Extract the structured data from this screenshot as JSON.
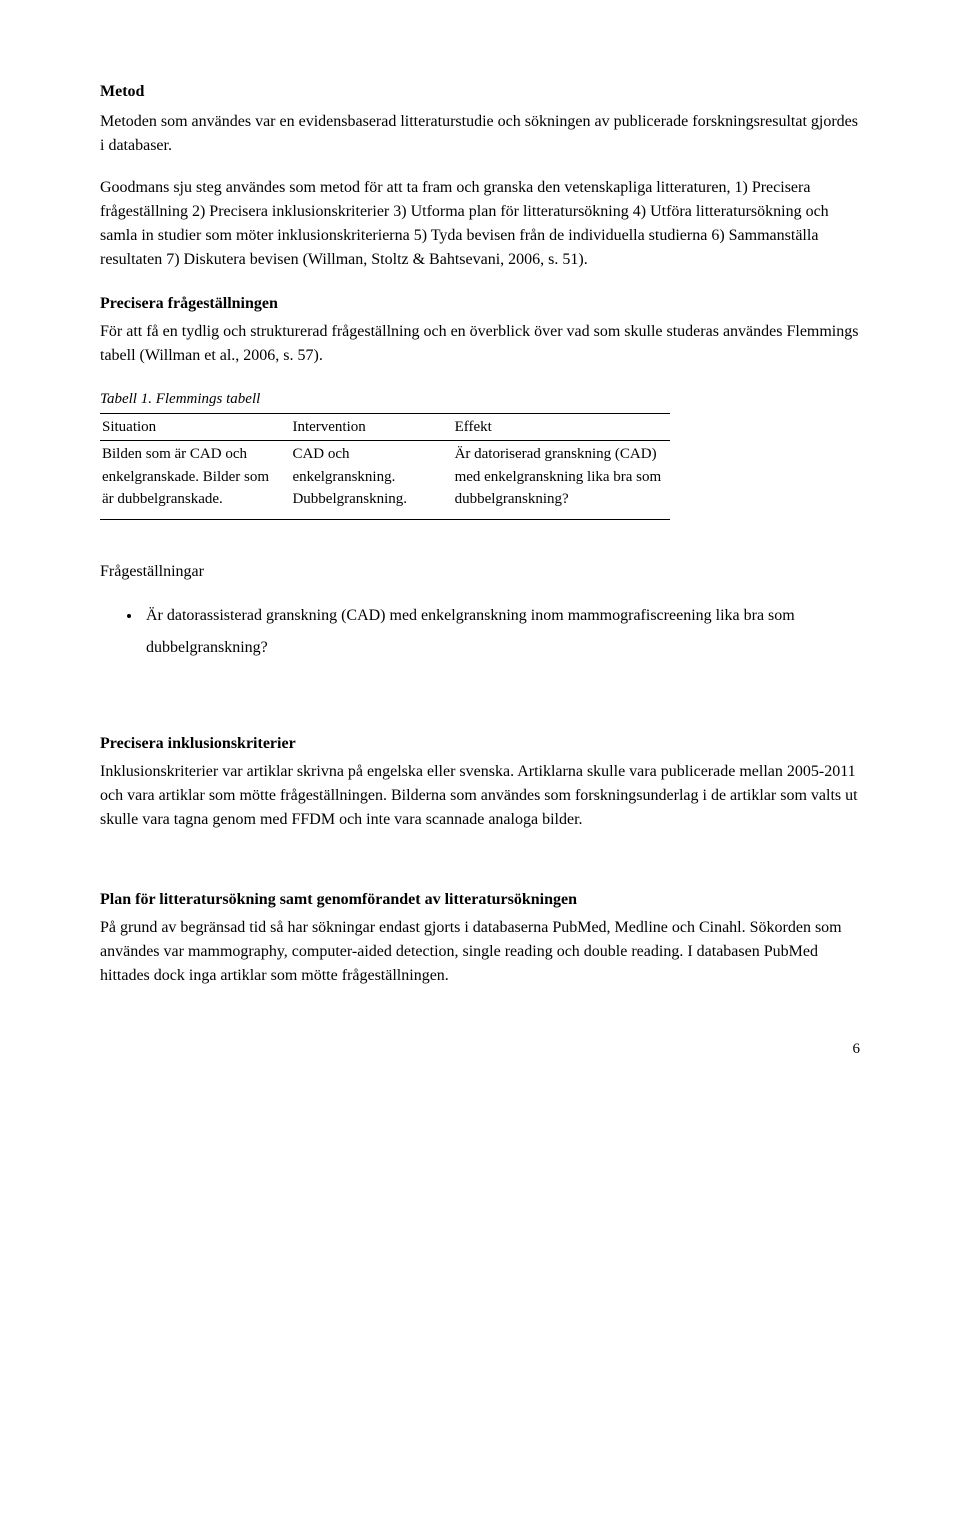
{
  "h_metod": "Metod",
  "p_metod_intro": "Metoden som användes var en evidensbaserad litteraturstudie och sökningen av publicerade forskningsresultat gjordes i databaser.",
  "p_metod_goodmans": "Goodmans sju steg användes som metod för att ta fram och granska den vetenskapliga litteraturen, 1) Precisera frågeställning 2) Precisera inklusionskriterier 3) Utforma plan för litteratursökning 4) Utföra litteratursökning och samla in studier som möter inklusionskriterierna 5) Tyda bevisen från de individuella studierna 6) Sammanställa resultaten 7) Diskutera bevisen (Willman, Stoltz & Bahtsevani, 2006, s. 51).",
  "h_precisera_fraga": "Precisera frågeställningen",
  "p_precisera_fraga": "För att få en tydlig och strukturerad frågeställning och en överblick över vad som skulle studeras användes Flemmings tabell (Willman et al., 2006, s. 57).",
  "table_caption": "Tabell 1. Flemmings tabell",
  "table": {
    "headers": [
      "Situation",
      "Intervention",
      "Effekt"
    ],
    "row": {
      "situation": "Bilden som är CAD och enkelgranskade. Bilder som är dubbelgranskade.",
      "intervention": "CAD och enkelgranskning. Dubbelgranskning.",
      "effekt": "Är datoriserad granskning (CAD) med enkelgranskning lika bra som dubbelgranskning?"
    }
  },
  "q_label": "Frågeställningar",
  "bullet_q": "Är datorassisterad granskning (CAD) med enkelgranskning inom mammografiscreening lika bra som dubbelgranskning?",
  "h_inklusion": "Precisera inklusionskriterier",
  "p_inklusion": "Inklusionskriterier var artiklar skrivna på engelska eller svenska. Artiklarna skulle vara publicerade mellan 2005-2011 och vara artiklar som mötte frågeställningen. Bilderna som användes som forskningsunderlag i de artiklar som valts ut skulle vara tagna genom med FFDM och inte vara scannade analoga bilder.",
  "h_plan": "Plan för litteratursökning samt genomförandet av litteratursökningen",
  "p_plan": "På grund av begränsad tid så har sökningar endast gjorts i databaserna PubMed, Medline och Cinahl. Sökorden som användes var mammography, computer-aided detection, single reading och double reading. I databasen PubMed hittades dock inga artiklar som mötte frågeställningen.",
  "page_number": "6"
}
